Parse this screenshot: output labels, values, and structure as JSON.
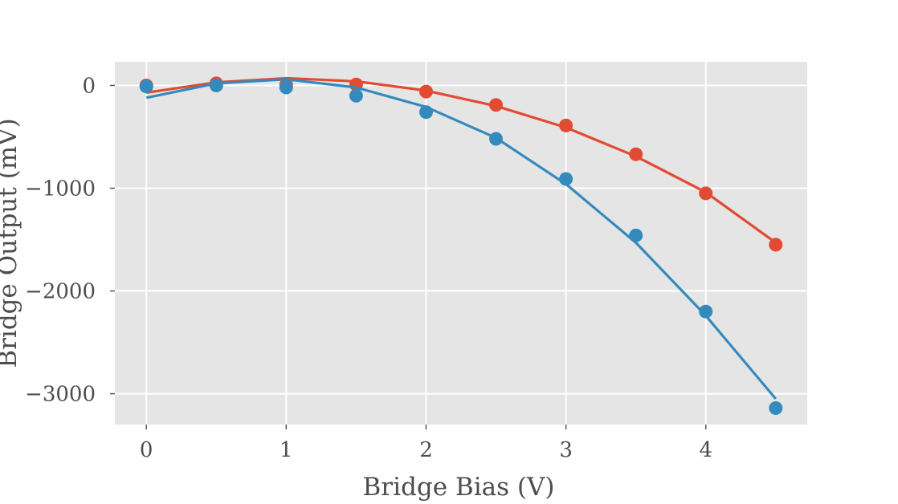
{
  "chart_data": {
    "type": "line",
    "title": "",
    "xlabel": "Bridge Bias (V)",
    "ylabel": "Bridge Output (mV)",
    "xlim": [
      -0.225,
      4.725
    ],
    "ylim": [
      -3300,
      230
    ],
    "xticks": [
      0,
      1,
      2,
      3,
      4
    ],
    "xtick_labels": [
      "0",
      "1",
      "2",
      "3",
      "4"
    ],
    "yticks": [
      0,
      -1000,
      -2000,
      -3000
    ],
    "ytick_labels": [
      "0",
      "−1000",
      "−2000",
      "−3000"
    ],
    "grid": true,
    "legend": "none",
    "series": [
      {
        "color": "#e24a33",
        "x": [
          0,
          0.5,
          1,
          1.5,
          2,
          2.5,
          3,
          3.5,
          4,
          4.5
        ],
        "measured": [
          0,
          20,
          10,
          10,
          -60,
          -190,
          -390,
          -670,
          -1050,
          -1550
        ],
        "fit": [
          -70,
          30,
          70,
          40,
          -50,
          -200,
          -410,
          -690,
          -1040,
          -1530
        ]
      },
      {
        "color": "#348abd",
        "x": [
          0,
          0.5,
          1,
          1.5,
          2,
          2.5,
          3,
          3.5,
          4,
          4.5
        ],
        "measured": [
          -10,
          0,
          -20,
          -100,
          -260,
          -520,
          -910,
          -1460,
          -2200,
          -3140
        ],
        "fit": [
          -120,
          20,
          60,
          -20,
          -210,
          -510,
          -960,
          -1530,
          -2240,
          -3050
        ]
      }
    ]
  }
}
